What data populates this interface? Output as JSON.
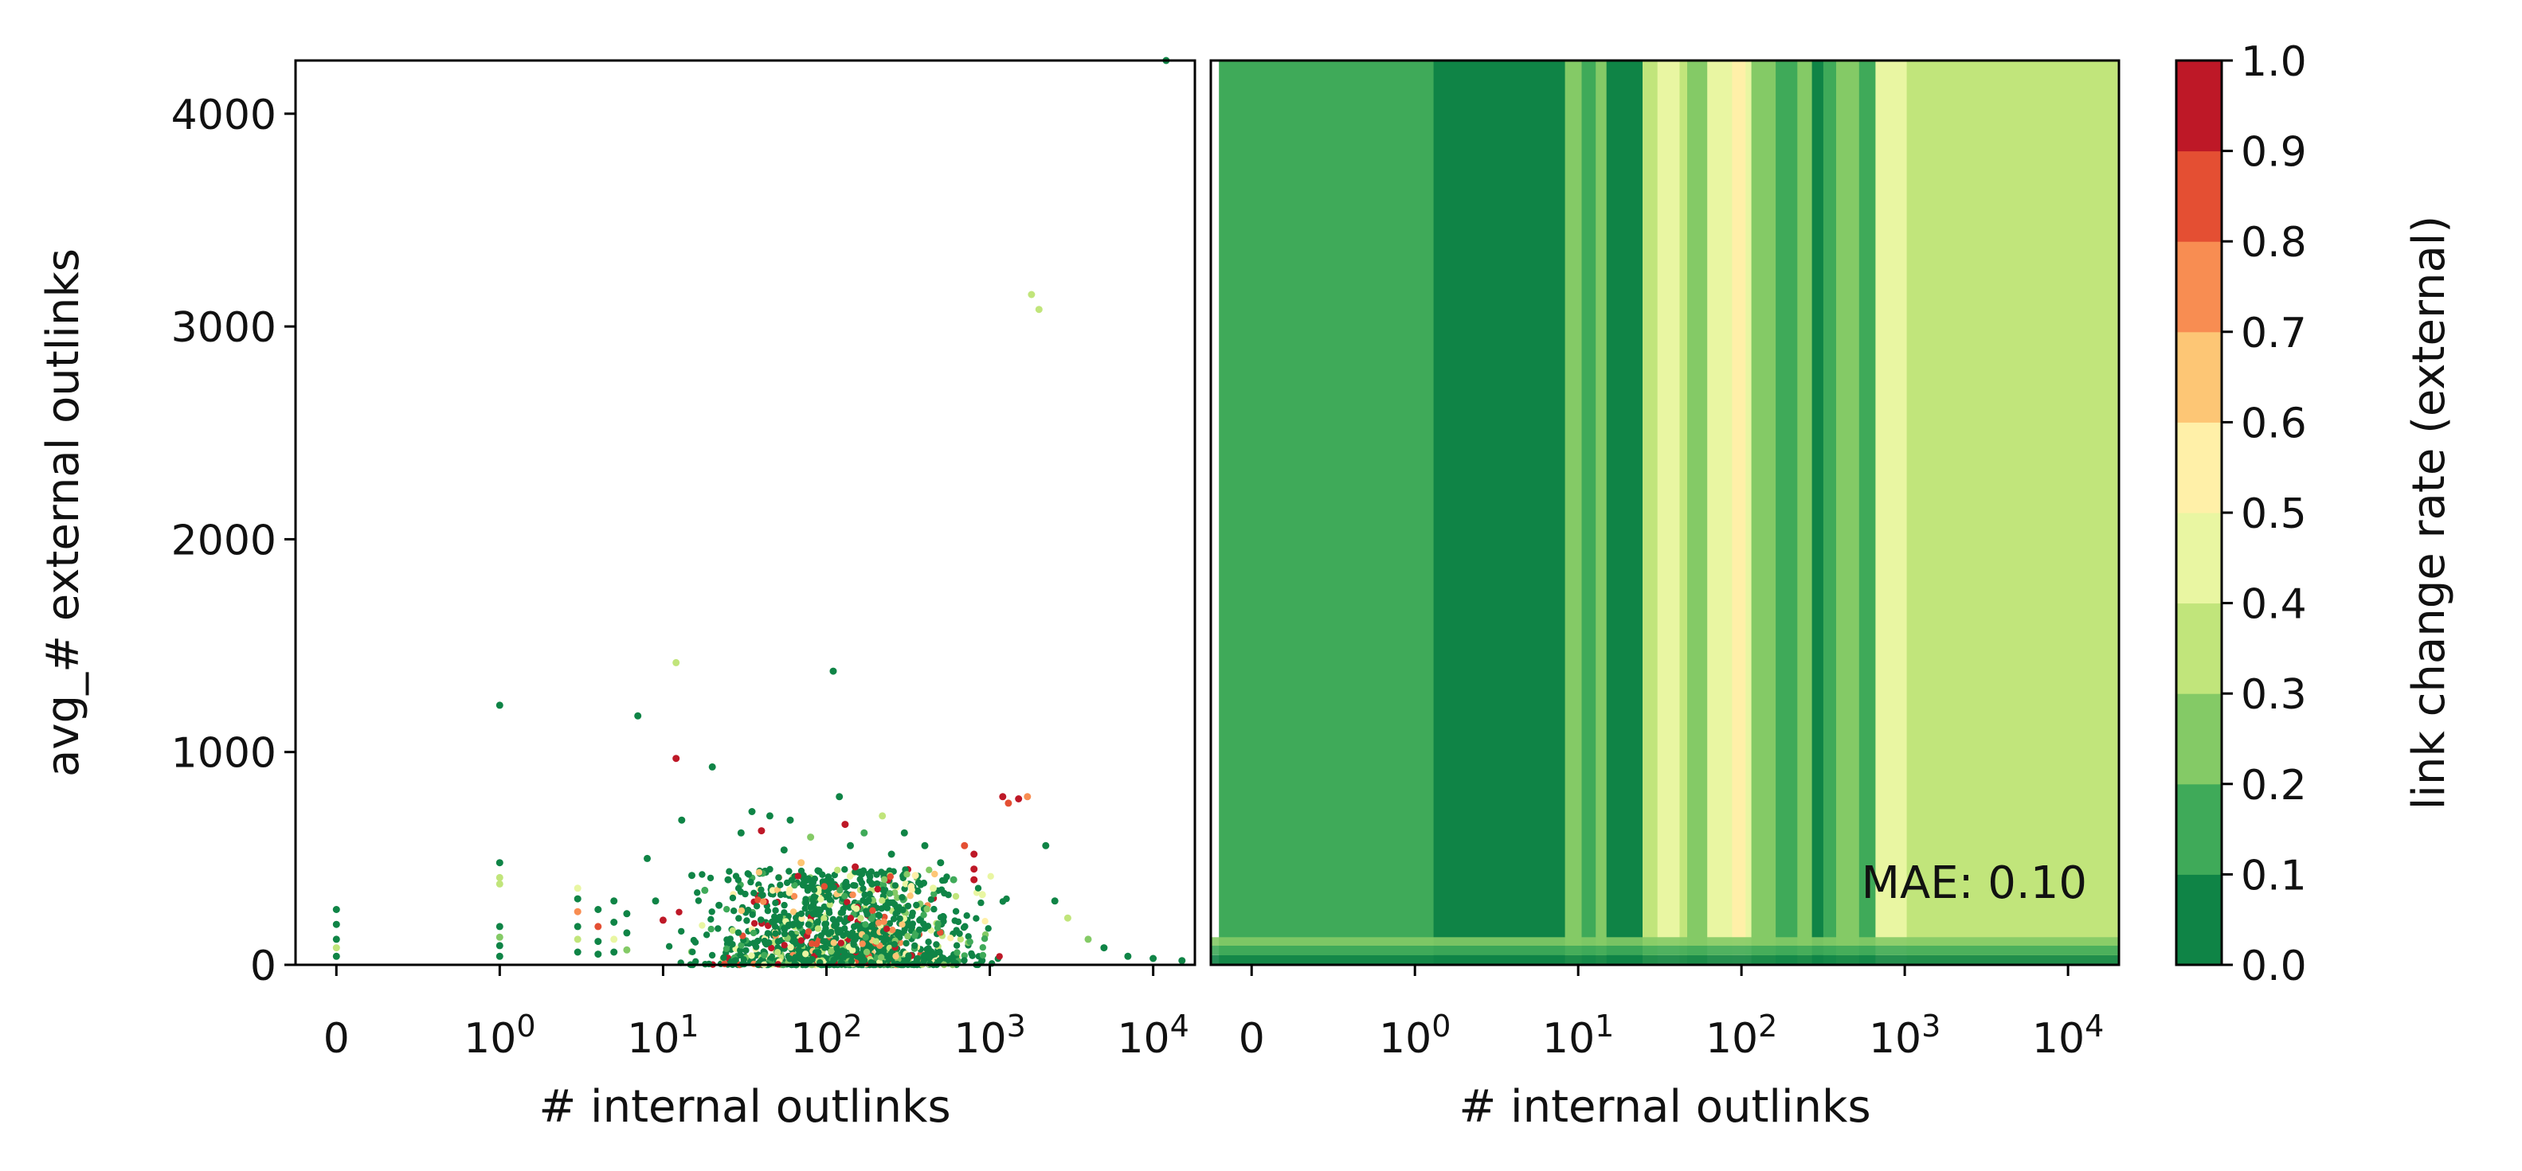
{
  "chart_data": [
    {
      "type": "scatter",
      "panel": "left",
      "xlabel": "# internal outlinks",
      "ylabel": "avg_# external outlinks",
      "x_scale": "symlog",
      "x_ticks": [
        "0",
        "10^0",
        "10^1",
        "10^2",
        "10^3",
        "10^4"
      ],
      "y_ticks": [
        "0",
        "1000",
        "2000",
        "3000",
        "4000"
      ],
      "ylim": [
        0,
        4250
      ],
      "color_by": "link change rate (external)",
      "points": [
        {
          "x": 0,
          "y": 260,
          "c": 0.05
        },
        {
          "x": 0,
          "y": 190,
          "c": 0.05
        },
        {
          "x": 0,
          "y": 120,
          "c": 0.05
        },
        {
          "x": 0,
          "y": 80,
          "c": 0.3
        },
        {
          "x": 0,
          "y": 40,
          "c": 0.05
        },
        {
          "x": 1,
          "y": 1220,
          "c": 0.05
        },
        {
          "x": 1,
          "y": 480,
          "c": 0.05
        },
        {
          "x": 1,
          "y": 410,
          "c": 0.35
        },
        {
          "x": 1,
          "y": 380,
          "c": 0.35
        },
        {
          "x": 1,
          "y": 180,
          "c": 0.05
        },
        {
          "x": 1,
          "y": 130,
          "c": 0.25
        },
        {
          "x": 1,
          "y": 90,
          "c": 0.05
        },
        {
          "x": 1,
          "y": 40,
          "c": 0.05
        },
        {
          "x": 3,
          "y": 360,
          "c": 0.45
        },
        {
          "x": 3,
          "y": 310,
          "c": 0.05
        },
        {
          "x": 3,
          "y": 250,
          "c": 0.75
        },
        {
          "x": 3,
          "y": 180,
          "c": 0.05
        },
        {
          "x": 3,
          "y": 120,
          "c": 0.35
        },
        {
          "x": 3,
          "y": 60,
          "c": 0.05
        },
        {
          "x": 4,
          "y": 260,
          "c": 0.05
        },
        {
          "x": 4,
          "y": 180,
          "c": 0.85
        },
        {
          "x": 4,
          "y": 110,
          "c": 0.05
        },
        {
          "x": 4,
          "y": 50,
          "c": 0.05
        },
        {
          "x": 5,
          "y": 300,
          "c": 0.05
        },
        {
          "x": 5,
          "y": 200,
          "c": 0.05
        },
        {
          "x": 5,
          "y": 120,
          "c": 0.45
        },
        {
          "x": 5,
          "y": 60,
          "c": 0.05
        },
        {
          "x": 6,
          "y": 240,
          "c": 0.05
        },
        {
          "x": 6,
          "y": 150,
          "c": 0.05
        },
        {
          "x": 6,
          "y": 70,
          "c": 0.25
        },
        {
          "x": 7,
          "y": 1170,
          "c": 0.05
        },
        {
          "x": 8,
          "y": 500,
          "c": 0.05
        },
        {
          "x": 9,
          "y": 300,
          "c": 0.05
        },
        {
          "x": 10,
          "y": 210,
          "c": 0.95
        },
        {
          "x": 12,
          "y": 1420,
          "c": 0.35
        },
        {
          "x": 12,
          "y": 970,
          "c": 0.95
        },
        {
          "x": 13,
          "y": 680,
          "c": 0.05
        },
        {
          "x": 20,
          "y": 930,
          "c": 0.05
        },
        {
          "x": 15,
          "y": 420,
          "c": 0.05
        },
        {
          "x": 18,
          "y": 350,
          "c": 0.15
        },
        {
          "x": 22,
          "y": 280,
          "c": 0.05
        },
        {
          "x": 25,
          "y": 400,
          "c": 0.05
        },
        {
          "x": 30,
          "y": 620,
          "c": 0.05
        },
        {
          "x": 35,
          "y": 720,
          "c": 0.05
        },
        {
          "x": 40,
          "y": 630,
          "c": 0.95
        },
        {
          "x": 45,
          "y": 700,
          "c": 0.05
        },
        {
          "x": 55,
          "y": 540,
          "c": 0.05
        },
        {
          "x": 60,
          "y": 680,
          "c": 0.05
        },
        {
          "x": 70,
          "y": 480,
          "c": 0.65
        },
        {
          "x": 80,
          "y": 600,
          "c": 0.25
        },
        {
          "x": 90,
          "y": 440,
          "c": 0.05
        },
        {
          "x": 110,
          "y": 1380,
          "c": 0.05
        },
        {
          "x": 120,
          "y": 790,
          "c": 0.05
        },
        {
          "x": 130,
          "y": 660,
          "c": 0.95
        },
        {
          "x": 140,
          "y": 560,
          "c": 0.05
        },
        {
          "x": 150,
          "y": 460,
          "c": 0.95
        },
        {
          "x": 170,
          "y": 620,
          "c": 0.15
        },
        {
          "x": 190,
          "y": 380,
          "c": 0.05
        },
        {
          "x": 220,
          "y": 700,
          "c": 0.35
        },
        {
          "x": 250,
          "y": 520,
          "c": 0.05
        },
        {
          "x": 300,
          "y": 620,
          "c": 0.05
        },
        {
          "x": 350,
          "y": 420,
          "c": 0.55
        },
        {
          "x": 400,
          "y": 560,
          "c": 0.05
        },
        {
          "x": 450,
          "y": 360,
          "c": 0.45
        },
        {
          "x": 500,
          "y": 480,
          "c": 0.05
        },
        {
          "x": 600,
          "y": 400,
          "c": 0.15
        },
        {
          "x": 700,
          "y": 560,
          "c": 0.85
        },
        {
          "x": 800,
          "y": 520,
          "c": 0.95
        },
        {
          "x": 800,
          "y": 450,
          "c": 0.9
        },
        {
          "x": 800,
          "y": 400,
          "c": 0.95
        },
        {
          "x": 900,
          "y": 330,
          "c": 0.45
        },
        {
          "x": 1200,
          "y": 790,
          "c": 0.95
        },
        {
          "x": 1300,
          "y": 760,
          "c": 0.85
        },
        {
          "x": 1500,
          "y": 780,
          "c": 0.95
        },
        {
          "x": 1700,
          "y": 790,
          "c": 0.75
        },
        {
          "x": 1800,
          "y": 3150,
          "c": 0.35
        },
        {
          "x": 2000,
          "y": 3080,
          "c": 0.35
        },
        {
          "x": 2200,
          "y": 560,
          "c": 0.05
        },
        {
          "x": 2500,
          "y": 300,
          "c": 0.05
        },
        {
          "x": 3000,
          "y": 220,
          "c": 0.35
        },
        {
          "x": 4000,
          "y": 120,
          "c": 0.25
        },
        {
          "x": 5000,
          "y": 80,
          "c": 0.05
        },
        {
          "x": 7000,
          "y": 40,
          "c": 0.05
        },
        {
          "x": 10000,
          "y": 30,
          "c": 0.05
        },
        {
          "x": 12000,
          "y": 4250,
          "c": 0.05
        },
        {
          "x": 15000,
          "y": 20,
          "c": 0.05
        }
      ],
      "dense_cluster": {
        "x_range": [
          3,
          5000
        ],
        "y_range": [
          0,
          450
        ],
        "count": 1400,
        "color_mix": [
          {
            "c": 0.05,
            "share": 0.62
          },
          {
            "c": 0.15,
            "share": 0.08
          },
          {
            "c": 0.25,
            "share": 0.06
          },
          {
            "c": 0.35,
            "share": 0.06
          },
          {
            "c": 0.45,
            "share": 0.04
          },
          {
            "c": 0.55,
            "share": 0.03
          },
          {
            "c": 0.65,
            "share": 0.02
          },
          {
            "c": 0.75,
            "share": 0.02
          },
          {
            "c": 0.85,
            "share": 0.02
          },
          {
            "c": 0.95,
            "share": 0.05
          }
        ]
      }
    },
    {
      "type": "heatmap",
      "panel": "right",
      "xlabel": "# internal outlinks",
      "x_scale": "symlog",
      "x_ticks": [
        "0",
        "10^0",
        "10^1",
        "10^2",
        "10^3",
        "10^4"
      ],
      "ylim": [
        0,
        4250
      ],
      "annotation": "MAE: 0.10",
      "bands": [
        {
          "x0": -0.2,
          "x1": 1.3,
          "v": 0.15
        },
        {
          "x0": 1.3,
          "x1": 8.3,
          "v": 0.05
        },
        {
          "x0": 8.3,
          "x1": 10.5,
          "v": 0.25
        },
        {
          "x0": 10.5,
          "x1": 12.8,
          "v": 0.15
        },
        {
          "x0": 12.8,
          "x1": 14.9,
          "v": 0.25
        },
        {
          "x0": 14.9,
          "x1": 24.8,
          "v": 0.05
        },
        {
          "x0": 24.8,
          "x1": 30.6,
          "v": 0.35
        },
        {
          "x0": 30.6,
          "x1": 41.8,
          "v": 0.45
        },
        {
          "x0": 41.8,
          "x1": 46.5,
          "v": 0.35
        },
        {
          "x0": 46.5,
          "x1": 61.7,
          "v": 0.25
        },
        {
          "x0": 61.7,
          "x1": 87.6,
          "v": 0.45
        },
        {
          "x0": 87.6,
          "x1": 106,
          "v": 0.55
        },
        {
          "x0": 106,
          "x1": 115,
          "v": 0.45
        },
        {
          "x0": 115,
          "x1": 162,
          "v": 0.25
        },
        {
          "x0": 162,
          "x1": 220,
          "v": 0.15
        },
        {
          "x0": 220,
          "x1": 270,
          "v": 0.25
        },
        {
          "x0": 270,
          "x1": 317,
          "v": 0.05
        },
        {
          "x0": 317,
          "x1": 380,
          "v": 0.15
        },
        {
          "x0": 380,
          "x1": 525,
          "v": 0.25
        },
        {
          "x0": 525,
          "x1": 662,
          "v": 0.15
        },
        {
          "x0": 662,
          "x1": 1028,
          "v": 0.45
        },
        {
          "x0": 1028,
          "x1": 20000,
          "v": 0.35
        }
      ],
      "bottom_strip": {
        "y_range": [
          0,
          130
        ],
        "layers": [
          {
            "y0": 0,
            "y1": 45,
            "v": 0.05
          },
          {
            "y0": 45,
            "y1": 90,
            "v": 0.15
          },
          {
            "y0": 90,
            "y1": 130,
            "v": 0.25
          }
        ]
      }
    },
    {
      "type": "colorbar",
      "label": "link change rate (external)",
      "boundaries": [
        0.0,
        0.1,
        0.2,
        0.3,
        0.4,
        0.5,
        0.6,
        0.7,
        0.8,
        0.9,
        1.0
      ],
      "tick_labels": [
        "0.0",
        "0.1",
        "0.2",
        "0.3",
        "0.4",
        "0.5",
        "0.6",
        "0.7",
        "0.8",
        "0.9",
        "1.0"
      ],
      "colors": [
        "#0f8446",
        "#3faa59",
        "#84ca66",
        "#c1e57b",
        "#e9f6a2",
        "#fff0a8",
        "#fdc675",
        "#f88d52",
        "#e44f33",
        "#be1827"
      ]
    }
  ]
}
